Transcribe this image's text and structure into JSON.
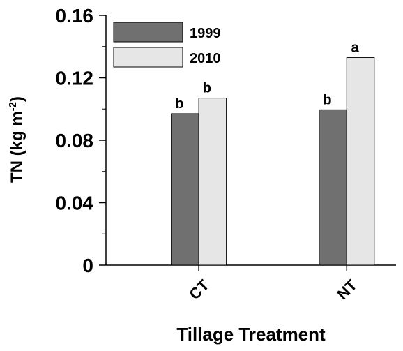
{
  "chart_data": {
    "type": "bar",
    "categories": [
      "CT",
      "NT"
    ],
    "series": [
      {
        "name": "1999",
        "color": "#707070",
        "values": [
          0.097,
          0.0995
        ],
        "letters": [
          "b",
          "b"
        ]
      },
      {
        "name": "2010",
        "color": "#e6e6e6",
        "values": [
          0.107,
          0.133
        ],
        "letters": [
          "b",
          "a"
        ]
      }
    ],
    "ylim": [
      0,
      0.16
    ],
    "yticks": [
      0,
      0.04,
      0.08,
      0.12,
      0.16
    ],
    "minor_yticks": [
      0.02,
      0.06,
      0.1,
      0.14
    ],
    "ylabel": [
      "TN (kg m",
      "-2",
      ")"
    ],
    "xlabel": "Tillage Treatment",
    "legend": "upper left"
  }
}
